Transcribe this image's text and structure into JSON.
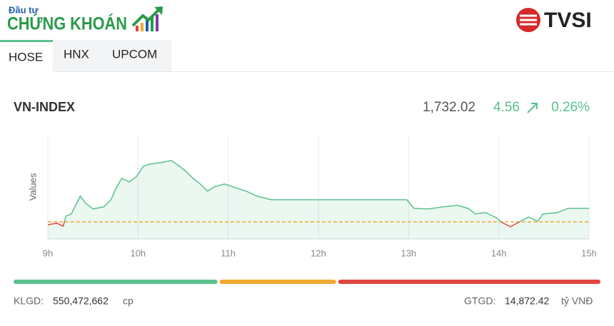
{
  "header": {
    "logo_top": "Đầu tư",
    "logo_main": "CHỨNG KHOÁN",
    "partner": "TVSI"
  },
  "tabs": [
    "HOSE",
    "HNX",
    "UPCOM"
  ],
  "index": {
    "name": "VN-INDEX",
    "value": "1,732.02",
    "change": "4.56",
    "percent": "0.26%"
  },
  "chart_data": {
    "type": "line",
    "y_label": "Values",
    "x": [
      9.0,
      9.1,
      9.17,
      9.2,
      9.26,
      9.32,
      9.36,
      9.42,
      9.5,
      9.62,
      9.7,
      9.76,
      9.82,
      9.9,
      9.98,
      10.06,
      10.13,
      10.25,
      10.37,
      10.45,
      10.53,
      10.61,
      10.69,
      10.77,
      10.85,
      10.96,
      11.08,
      11.2,
      11.32,
      11.48,
      12.98,
      13.06,
      13.22,
      13.38,
      13.54,
      13.66,
      13.74,
      13.85,
      13.97,
      14.05,
      14.13,
      14.21,
      14.33,
      14.43,
      14.49,
      14.65,
      14.77,
      15.0
    ],
    "values": [
      1726.5,
      1727.0,
      1726.0,
      1729.4,
      1730.1,
      1733.7,
      1736.1,
      1733.7,
      1731.8,
      1732.5,
      1734.9,
      1739.0,
      1742.1,
      1740.9,
      1742.6,
      1746.2,
      1746.9,
      1747.4,
      1748.1,
      1746.4,
      1744.5,
      1742.1,
      1740.2,
      1737.8,
      1739.3,
      1740.2,
      1739.0,
      1737.8,
      1736.1,
      1734.9,
      1734.9,
      1732.0,
      1731.8,
      1732.5,
      1733.0,
      1732.0,
      1730.1,
      1730.6,
      1728.9,
      1727.0,
      1725.8,
      1727.2,
      1729.1,
      1727.7,
      1730.1,
      1730.6,
      1732.0,
      1732.0
    ],
    "reference": 1727.46,
    "up_color": "#5ac18e",
    "down_color": "#e0453f",
    "reference_color": "#f0a830",
    "xlim": [
      9,
      15
    ],
    "ylim": [
      1721.7,
      1756.5
    ],
    "xticks": [
      {
        "value": 9,
        "label": "9h"
      },
      {
        "value": 10,
        "label": "10h"
      },
      {
        "value": 11,
        "label": "11h"
      },
      {
        "value": 12,
        "label": "12h"
      },
      {
        "value": 13,
        "label": "13h"
      },
      {
        "value": 14,
        "label": "14h"
      },
      {
        "value": 15,
        "label": "15h"
      }
    ],
    "grid": true
  },
  "breadth": {
    "values": [
      35,
      20,
      45
    ],
    "colors": [
      "#5ac18e",
      "#f0a830",
      "#e0453f"
    ]
  },
  "footer": {
    "volume_label": "KLGD:",
    "volume": "550,472,662",
    "volume_unit": "cp",
    "turnover_label": "GTGD:",
    "turnover": "14,872.42",
    "turnover_unit": "tỷ VNĐ"
  }
}
